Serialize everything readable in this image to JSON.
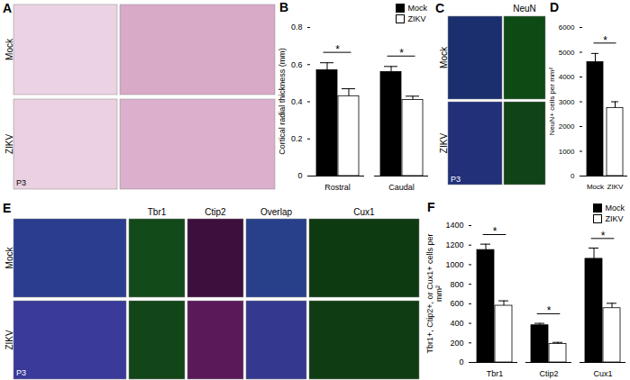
{
  "panels": [
    {
      "label": "A",
      "rows": [
        "Mock",
        "ZIKV"
      ],
      "age": "P3"
    },
    {
      "label": "C",
      "rows": [
        "Mock",
        "ZIKV"
      ],
      "column_headers": [
        "NeuN"
      ],
      "age": "P3"
    },
    {
      "label": "E",
      "rows": [
        "Mock",
        "ZIKV"
      ],
      "column_headers": [
        "Tbr1",
        "Ctip2",
        "Overlap",
        "Cux1"
      ],
      "age": "P3"
    }
  ],
  "chart_data": [
    {
      "panel": "B",
      "type": "bar",
      "ylabel": "Cortical radial thickness (mm)",
      "categories": [
        "Rostral",
        "Caudal"
      ],
      "series": [
        {
          "name": "Mock",
          "color": "#000000",
          "values": [
            0.57,
            0.56
          ],
          "errors": [
            0.04,
            0.03
          ]
        },
        {
          "name": "ZIKV",
          "color": "#ffffff",
          "values": [
            0.43,
            0.41
          ],
          "errors": [
            0.04,
            0.02
          ]
        }
      ],
      "ylim": [
        0,
        0.8
      ],
      "yticks": [
        0,
        0.2,
        0.4,
        0.6,
        0.8
      ],
      "legend": "top-right",
      "significance": [
        "*",
        "*"
      ]
    },
    {
      "panel": "D",
      "type": "bar",
      "ylabel": "NeuN+ cells per mm²",
      "categories": [
        "Mock",
        "ZIKV"
      ],
      "values": [
        4600,
        2750
      ],
      "errors": [
        350,
        250
      ],
      "colors": [
        "#000000",
        "#ffffff"
      ],
      "ylim": [
        0,
        6000
      ],
      "yticks": [
        0,
        1000,
        2000,
        3000,
        4000,
        5000,
        6000
      ],
      "significance": [
        "*"
      ]
    },
    {
      "panel": "F",
      "type": "bar",
      "ylabel": "Tbr1+, Ctip2+, or Cux1+ cells per mm²",
      "categories": [
        "Tbr1",
        "Ctip2",
        "Cux1"
      ],
      "series": [
        {
          "name": "Mock",
          "color": "#000000",
          "values": [
            1150,
            380,
            1060
          ],
          "errors": [
            60,
            20,
            110
          ]
        },
        {
          "name": "ZIKV",
          "color": "#ffffff",
          "values": [
            580,
            190,
            555
          ],
          "errors": [
            50,
            15,
            50
          ]
        }
      ],
      "ylim": [
        0,
        1400
      ],
      "yticks": [
        0,
        200,
        400,
        600,
        800,
        1000,
        1200,
        1400
      ],
      "legend": "top-right",
      "significance": [
        "*",
        "*",
        "*"
      ]
    }
  ]
}
